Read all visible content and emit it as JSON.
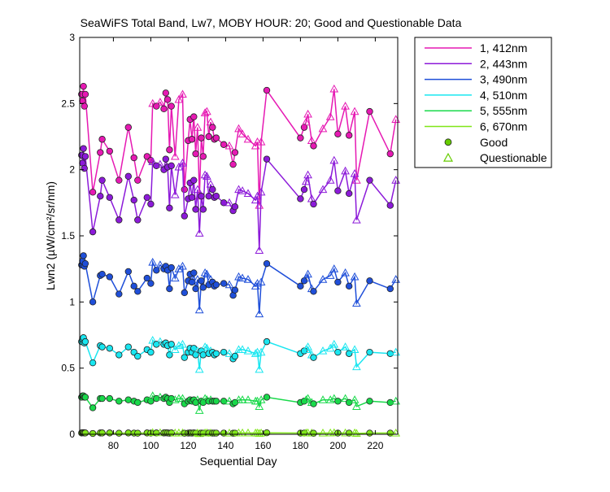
{
  "chart_data": {
    "type": "line",
    "title": "SeaWiFS Total Band, Lw7, MOBY HOUR: 20;  Good and Questionable Data",
    "xlabel": "Sequential Day",
    "ylabel": "Lwn2 (µW/cm²/sr/nm)",
    "xlim": [
      62,
      232
    ],
    "ylim": [
      0,
      3
    ],
    "xticks": [
      80,
      100,
      120,
      140,
      160,
      180,
      200,
      220
    ],
    "xtick_labels": [
      "80",
      "100",
      "120",
      "140",
      "160",
      "180",
      "200",
      "220"
    ],
    "yticks": [
      0,
      0.5,
      1,
      1.5,
      2,
      2.5,
      3
    ],
    "ytick_labels": [
      "0",
      "0.5",
      "1",
      "1.5",
      "2",
      "2.5",
      "3"
    ],
    "grid": false,
    "legend": {
      "placement": "outside-top-right",
      "good_label": "Good",
      "questionable_label": "Questionable",
      "good_color": "#66cc00",
      "questionable_color": "#66cc00"
    },
    "x": [
      63,
      63.5,
      64,
      64.5,
      65,
      69,
      73,
      74,
      78,
      83,
      88,
      91,
      93,
      98,
      100,
      101,
      103,
      105,
      107,
      108,
      109,
      110,
      111,
      113,
      115,
      117,
      118,
      120,
      121,
      122,
      123,
      124,
      125,
      126,
      127,
      128,
      129,
      130,
      131,
      132,
      133,
      134,
      135,
      139,
      142,
      144,
      145,
      147,
      149,
      152,
      156,
      157,
      158,
      159,
      162,
      180,
      182,
      183,
      184,
      186,
      187,
      192,
      196,
      198,
      200,
      204,
      206,
      209,
      210,
      217,
      228,
      231
    ],
    "series": [
      {
        "name": "1, 412nm",
        "color": "#e619b3",
        "values": [
          2.57,
          2.52,
          2.63,
          2.48,
          2.57,
          1.83,
          2.13,
          2.23,
          2.14,
          1.92,
          2.32,
          2.09,
          1.92,
          2.1,
          2.07,
          2.5,
          2.48,
          2.51,
          2.46,
          2.58,
          2.53,
          2.15,
          2.48,
          2.1,
          2.53,
          2.57,
          1.85,
          2.22,
          2.38,
          2.23,
          2.4,
          2.12,
          2.32,
          1.8,
          2.24,
          2.1,
          2.43,
          2.44,
          2.25,
          2.36,
          2.32,
          2.23,
          2.24,
          2.19,
          2.18,
          2.04,
          2.13,
          2.31,
          2.27,
          2.23,
          2.18,
          2.21,
          1.73,
          2.21,
          2.6,
          2.24,
          2.32,
          2.36,
          2.42,
          2.22,
          2.18,
          2.31,
          2.4,
          2.61,
          2.27,
          2.48,
          2.26,
          2.44,
          1.92,
          2.44,
          2.12,
          2.38
        ],
        "flags": [
          "g",
          "g",
          "g",
          "g",
          "g",
          "g",
          "g",
          "g",
          "g",
          "g",
          "g",
          "g",
          "g",
          "g",
          "g",
          "q",
          "g",
          "q",
          "g",
          "g",
          "g",
          "g",
          "g",
          "q",
          "q",
          "q",
          "g",
          "g",
          "g",
          "g",
          "g",
          "g",
          "q",
          "q",
          "g",
          "g",
          "q",
          "q",
          "g",
          "q",
          "g",
          "g",
          "g",
          "g",
          "q",
          "g",
          "g",
          "q",
          "q",
          "q",
          "q",
          "q",
          "q",
          "q",
          "g",
          "g",
          "g",
          "q",
          "q",
          "q",
          "g",
          "q",
          "q",
          "q",
          "g",
          "q",
          "g",
          "q",
          "q",
          "g",
          "g",
          "q"
        ]
      },
      {
        "name": "2, 443nm",
        "color": "#8c1ad9",
        "values": [
          2.11,
          2.05,
          2.16,
          2.01,
          2.1,
          1.53,
          1.8,
          1.92,
          1.79,
          1.62,
          1.95,
          1.77,
          1.62,
          1.79,
          1.74,
          2.06,
          2.03,
          2.04,
          2.0,
          2.08,
          2.02,
          1.71,
          2.03,
          1.81,
          2.02,
          2.05,
          1.65,
          1.78,
          1.9,
          1.79,
          1.92,
          1.7,
          1.85,
          1.52,
          1.8,
          1.7,
          1.96,
          1.95,
          1.8,
          1.89,
          1.85,
          1.79,
          1.8,
          1.75,
          1.75,
          1.69,
          1.72,
          1.85,
          1.84,
          1.82,
          1.77,
          1.8,
          1.39,
          1.83,
          2.08,
          1.78,
          1.85,
          1.91,
          1.96,
          1.78,
          1.74,
          1.85,
          1.92,
          2.07,
          1.84,
          1.99,
          1.82,
          1.97,
          1.62,
          1.92,
          1.73,
          1.92
        ],
        "flags": [
          "g",
          "g",
          "g",
          "g",
          "g",
          "g",
          "g",
          "g",
          "g",
          "g",
          "g",
          "g",
          "g",
          "g",
          "g",
          "q",
          "g",
          "q",
          "g",
          "g",
          "g",
          "g",
          "g",
          "q",
          "q",
          "q",
          "g",
          "g",
          "g",
          "g",
          "g",
          "g",
          "q",
          "q",
          "g",
          "g",
          "q",
          "q",
          "g",
          "q",
          "g",
          "g",
          "g",
          "g",
          "q",
          "g",
          "g",
          "q",
          "q",
          "q",
          "q",
          "q",
          "q",
          "q",
          "g",
          "g",
          "g",
          "q",
          "q",
          "q",
          "g",
          "q",
          "q",
          "q",
          "g",
          "q",
          "g",
          "q",
          "q",
          "g",
          "g",
          "q"
        ]
      },
      {
        "name": "3, 490nm",
        "color": "#1f4fd9",
        "values": [
          1.28,
          1.31,
          1.35,
          1.27,
          1.29,
          1.0,
          1.2,
          1.21,
          1.19,
          1.06,
          1.23,
          1.12,
          1.08,
          1.18,
          1.14,
          1.3,
          1.24,
          1.28,
          1.25,
          1.27,
          1.24,
          1.1,
          1.26,
          1.18,
          1.25,
          1.27,
          1.07,
          1.16,
          1.21,
          1.15,
          1.22,
          1.1,
          1.17,
          0.94,
          1.16,
          1.11,
          1.22,
          1.21,
          1.13,
          1.17,
          1.15,
          1.12,
          1.13,
          1.14,
          1.13,
          1.05,
          1.09,
          1.19,
          1.18,
          1.17,
          1.12,
          1.14,
          0.91,
          1.15,
          1.29,
          1.12,
          1.16,
          1.18,
          1.21,
          1.1,
          1.08,
          1.17,
          1.2,
          1.25,
          1.15,
          1.22,
          1.12,
          1.19,
          0.99,
          1.16,
          1.1,
          1.17
        ],
        "flags": [
          "g",
          "g",
          "g",
          "g",
          "g",
          "g",
          "g",
          "g",
          "g",
          "g",
          "g",
          "g",
          "g",
          "g",
          "g",
          "q",
          "g",
          "q",
          "g",
          "g",
          "g",
          "g",
          "g",
          "q",
          "q",
          "q",
          "g",
          "g",
          "g",
          "g",
          "g",
          "g",
          "q",
          "q",
          "g",
          "g",
          "q",
          "q",
          "g",
          "q",
          "g",
          "g",
          "g",
          "g",
          "q",
          "g",
          "g",
          "q",
          "q",
          "q",
          "q",
          "q",
          "q",
          "q",
          "g",
          "g",
          "g",
          "q",
          "q",
          "q",
          "g",
          "q",
          "q",
          "q",
          "g",
          "q",
          "g",
          "q",
          "q",
          "g",
          "g",
          "q"
        ]
      },
      {
        "name": "4, 510nm",
        "color": "#19e6f0",
        "values": [
          0.7,
          0.72,
          0.73,
          0.69,
          0.7,
          0.54,
          0.67,
          0.66,
          0.65,
          0.6,
          0.66,
          0.62,
          0.59,
          0.64,
          0.62,
          0.71,
          0.68,
          0.7,
          0.68,
          0.69,
          0.67,
          0.6,
          0.68,
          0.64,
          0.67,
          0.68,
          0.58,
          0.62,
          0.65,
          0.62,
          0.65,
          0.6,
          0.63,
          0.49,
          0.63,
          0.6,
          0.66,
          0.65,
          0.61,
          0.63,
          0.62,
          0.6,
          0.61,
          0.62,
          0.61,
          0.57,
          0.59,
          0.64,
          0.64,
          0.63,
          0.61,
          0.62,
          0.49,
          0.62,
          0.7,
          0.61,
          0.63,
          0.64,
          0.66,
          0.6,
          0.58,
          0.63,
          0.65,
          0.68,
          0.62,
          0.66,
          0.61,
          0.64,
          0.51,
          0.62,
          0.61,
          0.62
        ],
        "flags": [
          "g",
          "g",
          "g",
          "g",
          "g",
          "g",
          "g",
          "g",
          "g",
          "g",
          "g",
          "g",
          "g",
          "g",
          "g",
          "q",
          "g",
          "q",
          "g",
          "g",
          "g",
          "g",
          "g",
          "q",
          "q",
          "q",
          "g",
          "g",
          "g",
          "g",
          "g",
          "g",
          "q",
          "q",
          "g",
          "g",
          "q",
          "q",
          "g",
          "q",
          "g",
          "g",
          "g",
          "g",
          "q",
          "g",
          "g",
          "q",
          "q",
          "q",
          "q",
          "q",
          "q",
          "q",
          "g",
          "g",
          "g",
          "q",
          "q",
          "q",
          "g",
          "q",
          "q",
          "q",
          "g",
          "q",
          "g",
          "q",
          "q",
          "g",
          "g",
          "q"
        ]
      },
      {
        "name": "5, 555nm",
        "color": "#19d94a",
        "values": [
          0.28,
          0.29,
          0.29,
          0.28,
          0.28,
          0.2,
          0.27,
          0.27,
          0.27,
          0.25,
          0.26,
          0.25,
          0.24,
          0.26,
          0.25,
          0.29,
          0.27,
          0.28,
          0.27,
          0.28,
          0.27,
          0.24,
          0.27,
          0.26,
          0.27,
          0.27,
          0.23,
          0.25,
          0.26,
          0.25,
          0.26,
          0.24,
          0.26,
          0.18,
          0.25,
          0.24,
          0.27,
          0.26,
          0.25,
          0.26,
          0.25,
          0.25,
          0.25,
          0.25,
          0.25,
          0.23,
          0.24,
          0.26,
          0.26,
          0.26,
          0.25,
          0.25,
          0.21,
          0.26,
          0.28,
          0.24,
          0.25,
          0.26,
          0.27,
          0.24,
          0.23,
          0.26,
          0.26,
          0.27,
          0.25,
          0.27,
          0.24,
          0.26,
          0.21,
          0.25,
          0.24,
          0.25
        ],
        "flags": [
          "g",
          "g",
          "g",
          "g",
          "g",
          "g",
          "g",
          "g",
          "g",
          "g",
          "g",
          "g",
          "g",
          "g",
          "g",
          "q",
          "g",
          "q",
          "g",
          "g",
          "g",
          "g",
          "g",
          "q",
          "q",
          "q",
          "g",
          "g",
          "g",
          "g",
          "g",
          "g",
          "q",
          "q",
          "g",
          "g",
          "q",
          "q",
          "g",
          "q",
          "g",
          "g",
          "g",
          "g",
          "q",
          "g",
          "g",
          "q",
          "q",
          "q",
          "q",
          "q",
          "q",
          "q",
          "g",
          "g",
          "g",
          "q",
          "q",
          "q",
          "g",
          "q",
          "q",
          "q",
          "g",
          "q",
          "g",
          "q",
          "q",
          "g",
          "g",
          "q"
        ]
      },
      {
        "name": "6, 670nm",
        "color": "#80e619",
        "values": [
          0.01,
          0.012,
          0.012,
          0.01,
          0.01,
          0.006,
          0.01,
          0.01,
          0.01,
          0.008,
          0.01,
          0.009,
          0.008,
          0.01,
          0.009,
          0.012,
          0.01,
          0.011,
          0.01,
          0.011,
          0.01,
          0.008,
          0.01,
          0.009,
          0.01,
          0.01,
          0.008,
          0.009,
          0.01,
          0.009,
          0.01,
          0.008,
          0.009,
          0.005,
          0.009,
          0.008,
          0.01,
          0.01,
          0.009,
          0.009,
          0.009,
          0.009,
          0.009,
          0.009,
          0.009,
          0.008,
          0.008,
          0.01,
          0.01,
          0.01,
          0.009,
          0.009,
          0.006,
          0.009,
          0.011,
          0.009,
          0.009,
          0.01,
          0.01,
          0.009,
          0.008,
          0.009,
          0.01,
          0.011,
          0.009,
          0.01,
          0.009,
          0.01,
          0.006,
          0.009,
          0.009,
          0.009
        ],
        "flags": [
          "g",
          "g",
          "g",
          "g",
          "g",
          "g",
          "g",
          "g",
          "g",
          "g",
          "g",
          "g",
          "g",
          "g",
          "g",
          "q",
          "g",
          "q",
          "g",
          "g",
          "g",
          "g",
          "g",
          "q",
          "q",
          "q",
          "g",
          "g",
          "g",
          "g",
          "g",
          "g",
          "q",
          "q",
          "g",
          "g",
          "q",
          "q",
          "g",
          "q",
          "g",
          "g",
          "g",
          "g",
          "q",
          "g",
          "g",
          "q",
          "q",
          "q",
          "q",
          "q",
          "q",
          "q",
          "g",
          "g",
          "g",
          "q",
          "q",
          "q",
          "g",
          "q",
          "q",
          "q",
          "g",
          "q",
          "g",
          "q",
          "q",
          "g",
          "g",
          "q"
        ]
      }
    ]
  }
}
